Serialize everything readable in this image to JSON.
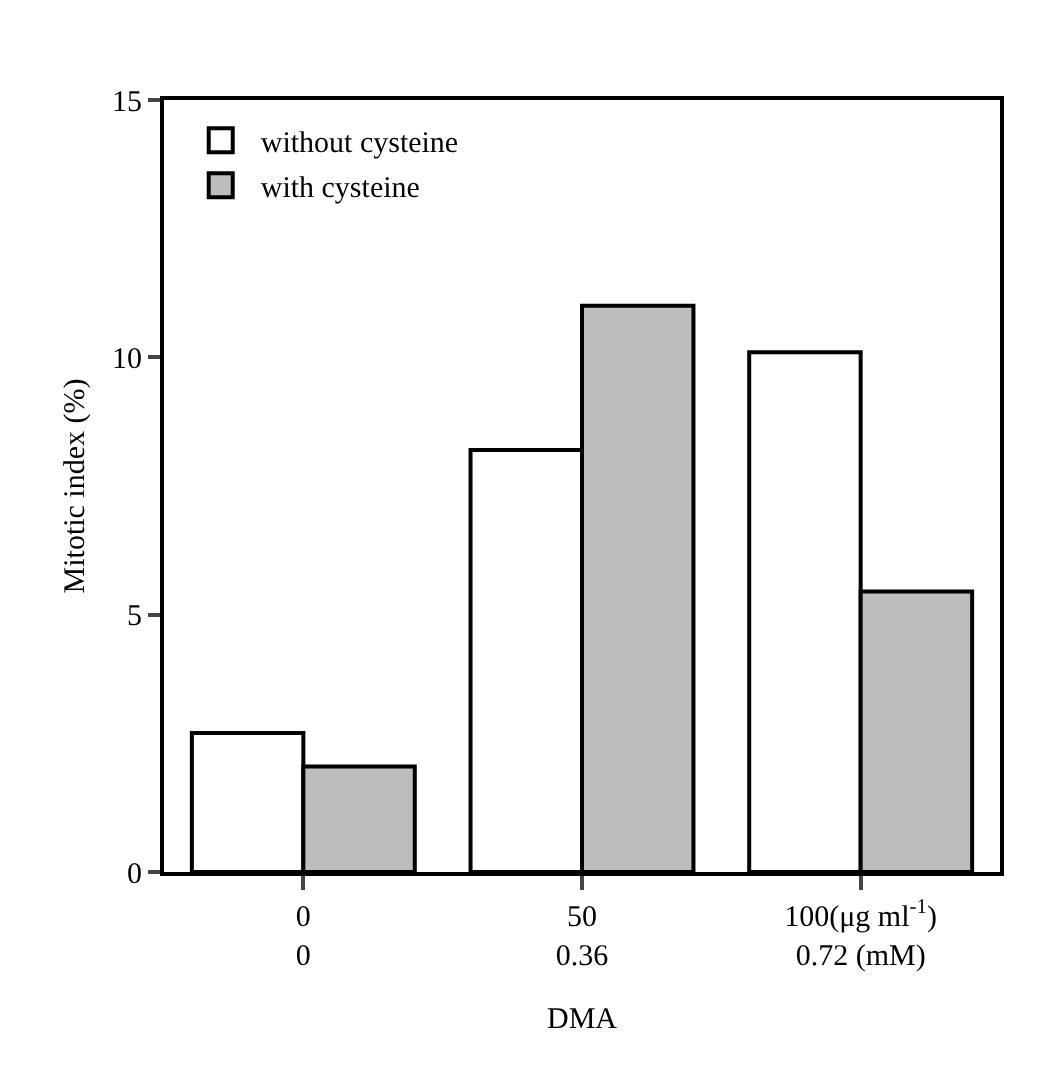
{
  "chart_data": {
    "type": "bar",
    "xlabel": "DMA",
    "ylabel": "Mitotic index (%)",
    "categories": [
      "0\n0",
      "50\n0.36",
      "100(μg ml$^{-1}$)\n0.72 (mM)"
    ],
    "series": [
      {
        "name": "without cysteine",
        "color": "#ffffff",
        "values": [
          2.7,
          8.2,
          10.1
        ]
      },
      {
        "name": "with cysteine",
        "color": "#bdbdbd",
        "values": [
          2.05,
          11.0,
          5.45
        ]
      }
    ],
    "ylim": [
      0,
      15
    ],
    "yticks": [
      0,
      5,
      10,
      15
    ],
    "grid": false,
    "legend": "top left"
  }
}
